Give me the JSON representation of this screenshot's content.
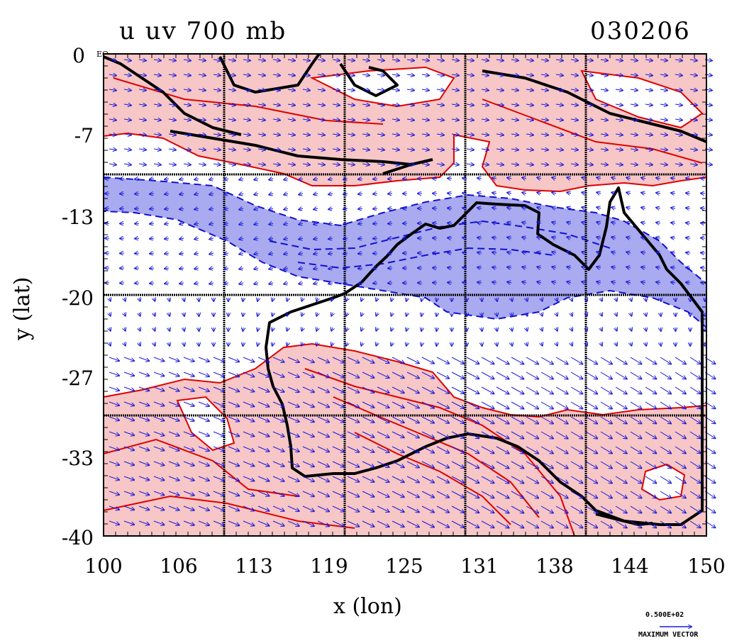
{
  "title": {
    "left": "u uv 700 mb",
    "right": "030206"
  },
  "equator_mark": "EQ",
  "axes": {
    "xlabel": "x (lon)",
    "ylabel": "y (lat)",
    "xticks": [
      "100",
      "106",
      "113",
      "119",
      "125",
      "131",
      "138",
      "144",
      "150"
    ],
    "yticks": [
      "0",
      "-7",
      "-13",
      "-20",
      "-27",
      "-33",
      "-40"
    ],
    "xlim": [
      100,
      150
    ],
    "ylim": [
      -40,
      0
    ]
  },
  "reference_vector": {
    "value": "0.500E+02",
    "label": "MAXIMUM VECTOR"
  },
  "colors": {
    "positive_fill": "#f7c6c6",
    "positive_contour": "#e00000",
    "negative_fill": "#a9aaf0",
    "negative_contour": "#1010d0",
    "vector": "#1a1ad8",
    "coast": "#000000",
    "grid": "#000000"
  },
  "chart_data": {
    "type": "map",
    "field": "u wind and wind vectors, 700 mb",
    "shading": [
      "positive u (red)",
      "negative u (blue, dashed contours)"
    ],
    "grid_lines_lon": [
      110,
      120,
      130,
      140
    ],
    "grid_lines_lat": [
      -10,
      -20,
      -30
    ]
  }
}
